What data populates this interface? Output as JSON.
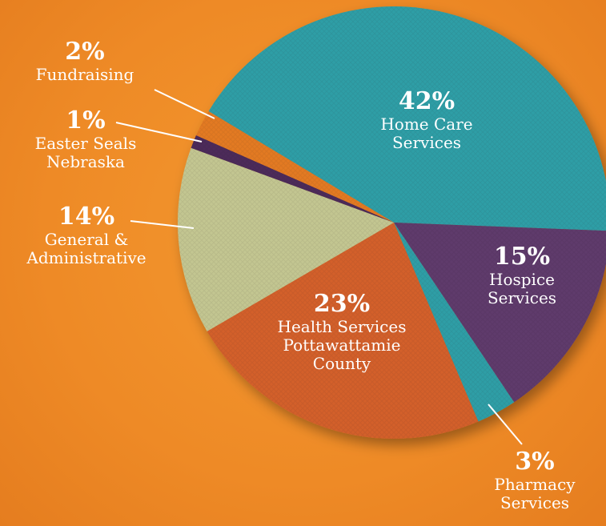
{
  "chart_data": {
    "type": "pie",
    "categories": [
      "Home Care Services",
      "Hospice Services",
      "Pharmacy Services",
      "Health Services Pottawattamie County",
      "General & Administrative",
      "Easter Seals Nebraska",
      "Fundraising"
    ],
    "values": [
      42,
      15,
      3,
      23,
      14,
      1,
      2
    ],
    "value_labels": [
      "42%",
      "15%",
      "3%",
      "23%",
      "14%",
      "1%",
      "2%"
    ],
    "colors": [
      "#2f9ea6",
      "#5f3b6c",
      "#2f9ea6",
      "#d3602b",
      "#c3c691",
      "#4d2c5a",
      "#e37a22"
    ]
  }
}
